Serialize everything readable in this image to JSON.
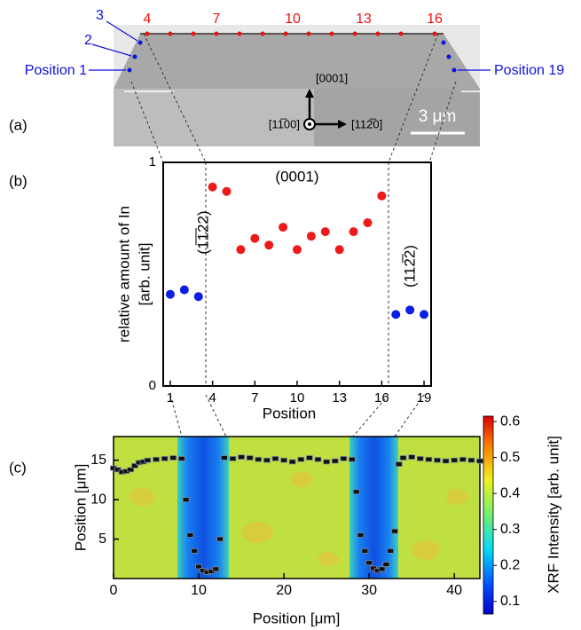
{
  "image_a": {
    "panel_label": "(a)",
    "labels": [
      "Position 1",
      "2",
      "3",
      "4",
      "7",
      "10",
      "13",
      "16",
      "Position 19"
    ],
    "directions": [
      "[0001]",
      "[11̅00]",
      "[112̅0]"
    ],
    "scale_bar": "3 μm"
  },
  "chart_data": [
    {
      "type": "scatter",
      "panel_label": "(b)",
      "marker": "circle",
      "xlabel": "Position",
      "ylabel": [
        "relative amount of In",
        "[arb. unit]"
      ],
      "annotations": [
        "(0001)",
        "(1̅1̅22)",
        "(112̅2)"
      ],
      "xlim": [
        0.5,
        19.5
      ],
      "ylim": [
        0,
        1
      ],
      "xticks": [
        1,
        4,
        7,
        10,
        13,
        16,
        19
      ],
      "yticks": [
        0,
        1
      ],
      "series": [
        {
          "color": "#0a1ee6",
          "x": [
            1,
            2,
            3,
            17,
            18,
            19
          ],
          "values": [
            0.41,
            0.43,
            0.4,
            0.32,
            0.34,
            0.32
          ]
        },
        {
          "color": "#ee1a1a",
          "x": [
            4,
            5,
            6,
            7,
            8,
            9,
            10,
            11,
            12,
            13,
            14,
            15,
            16
          ],
          "values": [
            0.89,
            0.87,
            0.61,
            0.66,
            0.63,
            0.71,
            0.61,
            0.67,
            0.69,
            0.61,
            0.69,
            0.73,
            0.85
          ]
        }
      ]
    },
    {
      "type": "scatter",
      "panel_label": "(c)",
      "marker": "square",
      "xlabel": "Position [μm]",
      "ylabel": "Position [μm]",
      "xlim": [
        0,
        43
      ],
      "ylim": [
        0,
        18
      ],
      "xticks": [
        0,
        10,
        20,
        30,
        40
      ],
      "yticks": [
        5,
        10,
        15
      ],
      "colorbar": {
        "label": "XRF Intensity [arb. unit]",
        "colormap": "jet",
        "lim": [
          0.065,
          0.615
        ],
        "ticks": [
          0.1,
          0.2,
          0.3,
          0.4,
          0.5,
          0.6
        ]
      },
      "series": [
        {
          "color": "#111111",
          "x": [
            0,
            0.5,
            1,
            1.5,
            2,
            2.5,
            3,
            3.5,
            4,
            5,
            6,
            7,
            8,
            8.5,
            9,
            9.5,
            10,
            10.5,
            11,
            11.5,
            12,
            12.5,
            13,
            14,
            15,
            16,
            17,
            18,
            19,
            20,
            21,
            22,
            23,
            24,
            25,
            26,
            27,
            28,
            28.5,
            29,
            29.5,
            30,
            30.5,
            31,
            31.5,
            32,
            32.5,
            33,
            33.5,
            34,
            35,
            36,
            37,
            38,
            39,
            40,
            41,
            42,
            43
          ],
          "values": [
            14,
            13.8,
            13.5,
            13.6,
            13.8,
            14.3,
            14.7,
            14.8,
            15,
            15.1,
            15.2,
            15.3,
            15.2,
            10,
            5.5,
            3.5,
            1.5,
            1,
            0.8,
            0.9,
            1.2,
            5,
            15.3,
            15.2,
            15.4,
            15.3,
            15.1,
            15,
            15.2,
            15,
            14.8,
            15.1,
            15.3,
            15.1,
            14.8,
            14.9,
            15.2,
            15.1,
            11,
            5.5,
            3.5,
            2,
            1.3,
            1,
            1.2,
            1.8,
            3.5,
            6,
            14.5,
            15.3,
            15.4,
            15.2,
            15.1,
            15,
            14.9,
            15,
            15.1,
            15,
            14.9
          ]
        }
      ]
    }
  ]
}
